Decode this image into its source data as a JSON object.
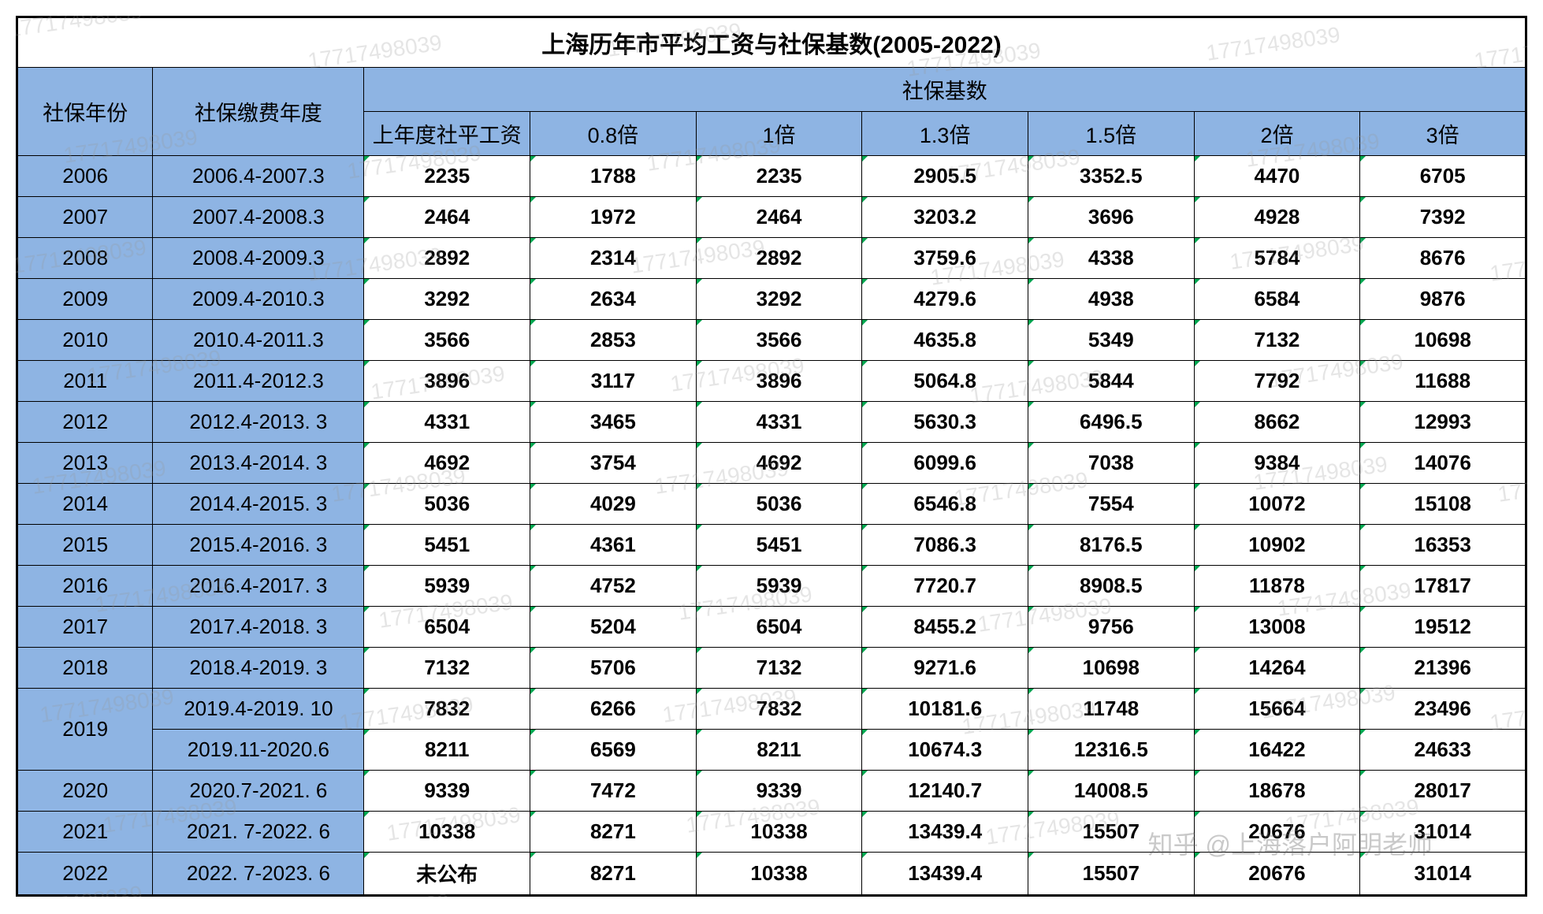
{
  "table": {
    "title": "上海历年市平均工资与社保基数(2005-2022)",
    "header_row1_col1": "社保年份",
    "header_row1_col2": "社保缴费年度",
    "header_row1_group": "社保基数",
    "header_row2": [
      "上年度社平工资",
      "0.8倍",
      "1倍",
      "1.3倍",
      "1.5倍",
      "2倍",
      "3倍"
    ],
    "rows": [
      {
        "year": "2006",
        "period": "2006.4-2007.3",
        "data": [
          "2235",
          "1788",
          "2235",
          "2905.5",
          "3352.5",
          "4470",
          "6705"
        ]
      },
      {
        "year": "2007",
        "period": "2007.4-2008.3",
        "data": [
          "2464",
          "1972",
          "2464",
          "3203.2",
          "3696",
          "4928",
          "7392"
        ]
      },
      {
        "year": "2008",
        "period": "2008.4-2009.3",
        "data": [
          "2892",
          "2314",
          "2892",
          "3759.6",
          "4338",
          "5784",
          "8676"
        ]
      },
      {
        "year": "2009",
        "period": "2009.4-2010.3",
        "data": [
          "3292",
          "2634",
          "3292",
          "4279.6",
          "4938",
          "6584",
          "9876"
        ]
      },
      {
        "year": "2010",
        "period": "2010.4-2011.3",
        "data": [
          "3566",
          "2853",
          "3566",
          "4635.8",
          "5349",
          "7132",
          "10698"
        ]
      },
      {
        "year": "2011",
        "period": "2011.4-2012.3",
        "data": [
          "3896",
          "3117",
          "3896",
          "5064.8",
          "5844",
          "7792",
          "11688"
        ]
      },
      {
        "year": "2012",
        "period": "2012.4-2013. 3",
        "data": [
          "4331",
          "3465",
          "4331",
          "5630.3",
          "6496.5",
          "8662",
          "12993"
        ]
      },
      {
        "year": "2013",
        "period": "2013.4-2014. 3",
        "data": [
          "4692",
          "3754",
          "4692",
          "6099.6",
          "7038",
          "9384",
          "14076"
        ]
      },
      {
        "year": "2014",
        "period": "2014.4-2015. 3",
        "data": [
          "5036",
          "4029",
          "5036",
          "6546.8",
          "7554",
          "10072",
          "15108"
        ]
      },
      {
        "year": "2015",
        "period": "2015.4-2016. 3",
        "data": [
          "5451",
          "4361",
          "5451",
          "7086.3",
          "8176.5",
          "10902",
          "16353"
        ]
      },
      {
        "year": "2016",
        "period": "2016.4-2017. 3",
        "data": [
          "5939",
          "4752",
          "5939",
          "7720.7",
          "8908.5",
          "11878",
          "17817"
        ]
      },
      {
        "year": "2017",
        "period": "2017.4-2018. 3",
        "data": [
          "6504",
          "5204",
          "6504",
          "8455.2",
          "9756",
          "13008",
          "19512"
        ]
      },
      {
        "year": "2018",
        "period": "2018.4-2019. 3",
        "data": [
          "7132",
          "5706",
          "7132",
          "9271.6",
          "10698",
          "14264",
          "21396"
        ]
      },
      {
        "year": "2019",
        "year_rowspan": 2,
        "period": "2019.4-2019. 10",
        "data": [
          "7832",
          "6266",
          "7832",
          "10181.6",
          "11748",
          "15664",
          "23496"
        ]
      },
      {
        "year": null,
        "period": "2019.11-2020.6",
        "data": [
          "8211",
          "6569",
          "8211",
          "10674.3",
          "12316.5",
          "16422",
          "24633"
        ]
      },
      {
        "year": "2020",
        "period": "2020.7-2021. 6",
        "data": [
          "9339",
          "7472",
          "9339",
          "12140.7",
          "14008.5",
          "18678",
          "28017"
        ]
      },
      {
        "year": "2021",
        "period": "2021. 7-2022. 6",
        "data": [
          "10338",
          "8271",
          "10338",
          "13439.4",
          "15507",
          "20676",
          "31014"
        ]
      },
      {
        "year": "2022",
        "period": "2022. 7-2023. 6",
        "data": [
          "未公布",
          "8271",
          "10338",
          "13439.4",
          "15507",
          "20676",
          "31014"
        ]
      }
    ],
    "colors": {
      "header_bg": "#8eb4e3",
      "border": "#000000",
      "data_bg": "#ffffff",
      "corner_marker": "#00a650"
    },
    "watermark_text": "17717498039",
    "bottom_watermark": "知乎 @上海落户阿明老师"
  }
}
